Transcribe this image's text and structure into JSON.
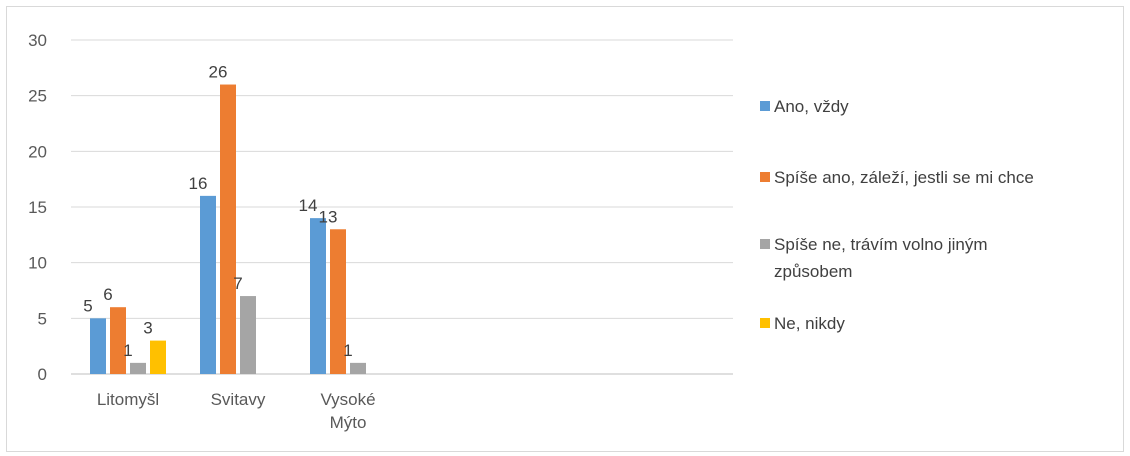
{
  "chart_data": {
    "type": "bar",
    "categories": [
      "Litomyšl",
      "Svitavy",
      "Vysoké Mýto"
    ],
    "category_label_lines": [
      [
        "Litomyšl"
      ],
      [
        "Svitavy"
      ],
      [
        "Vysoké",
        "Mýto"
      ]
    ],
    "series": [
      {
        "name": "Ano, vždy",
        "color": "#5b9bd5",
        "values": [
          5,
          16,
          14
        ],
        "legend_lines": [
          "Ano, vždy"
        ]
      },
      {
        "name": "Spíše ano, záleží, jestli se mi chce",
        "color": "#ed7d31",
        "values": [
          6,
          26,
          13
        ],
        "legend_lines": [
          "Spíše ano, záleží, jestli se mi chce"
        ]
      },
      {
        "name": "Spíše ne, trávím volno jiným způsobem",
        "color": "#a5a5a5",
        "values": [
          1,
          7,
          1
        ],
        "legend_lines": [
          "Spíše ne, trávím volno jiným",
          "způsobem"
        ]
      },
      {
        "name": "Ne, nikdy",
        "color": "#ffc000",
        "values": [
          3,
          null,
          null
        ],
        "legend_lines": [
          "Ne, nikdy"
        ]
      }
    ],
    "y_ticks": [
      0,
      5,
      10,
      15,
      20,
      25,
      30
    ],
    "ylim": [
      0,
      30
    ],
    "grid": true,
    "legend_position": "right",
    "data_labels": true
  }
}
